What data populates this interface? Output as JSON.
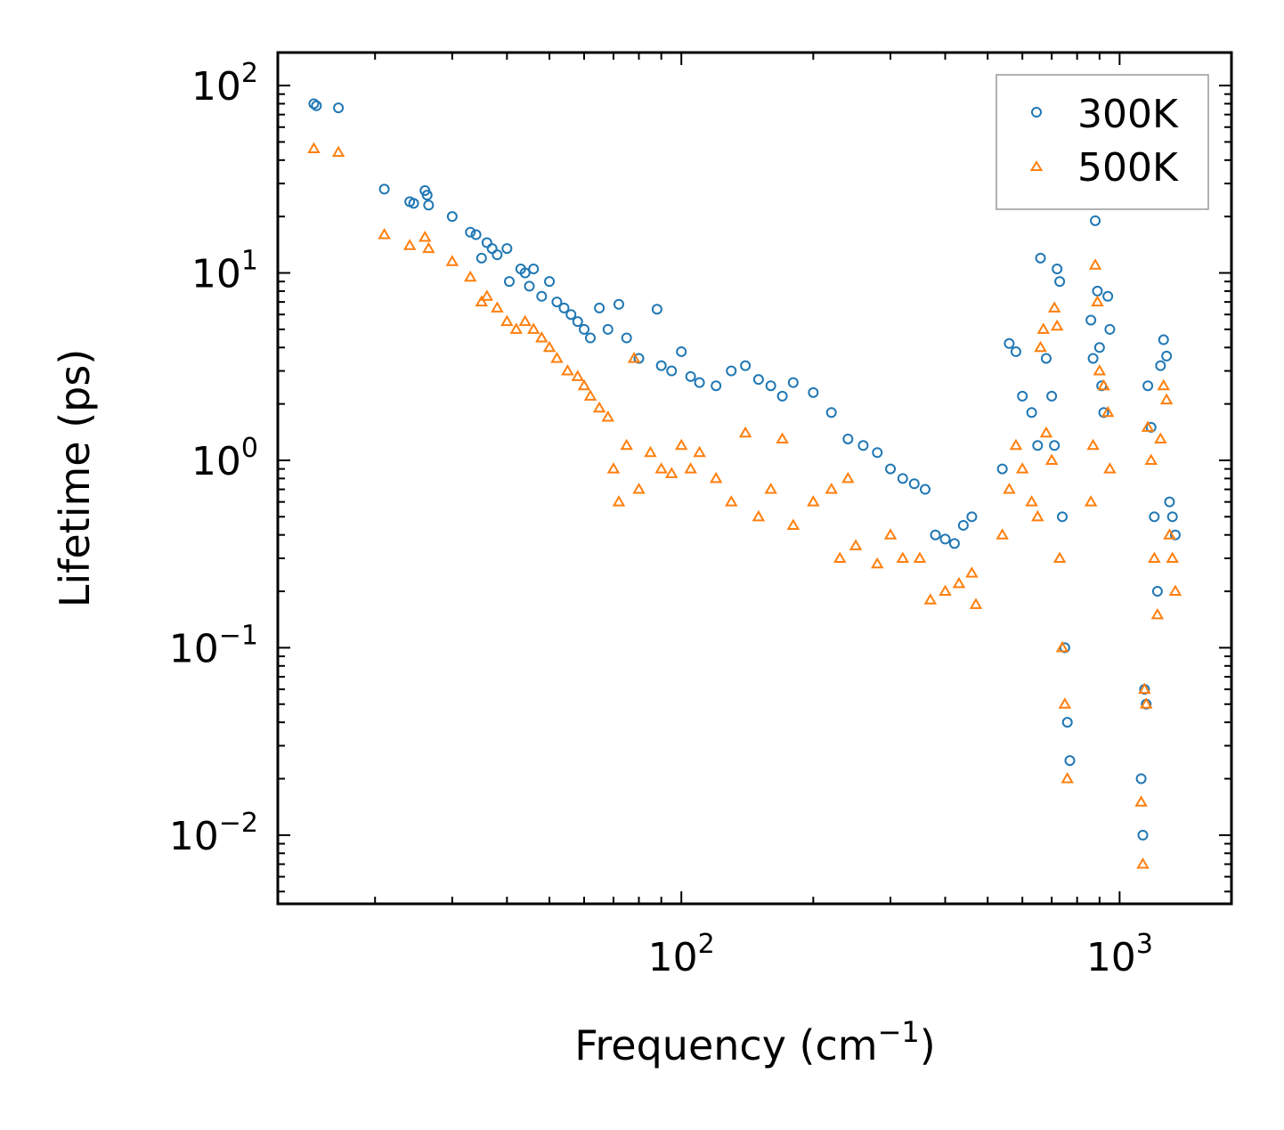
{
  "chart_data": {
    "type": "scatter",
    "title": "",
    "xlabel": "Frequency (cm",
    "xlabel_superscript": "−1",
    "xlabel_suffix": ")",
    "ylabel": "Lifetime (ps)",
    "xscale": "log",
    "yscale": "log",
    "xlim": [
      12,
      1800
    ],
    "ylim": [
      0.0043,
      150
    ],
    "x_ticks": [
      {
        "value": 100,
        "base": "10",
        "exp": "2"
      },
      {
        "value": 1000,
        "base": "10",
        "exp": "3"
      }
    ],
    "y_ticks": [
      {
        "value": 100,
        "base": "10",
        "exp": "2"
      },
      {
        "value": 10,
        "base": "10",
        "exp": "1"
      },
      {
        "value": 1,
        "base": "10",
        "exp": "0"
      },
      {
        "value": 0.1,
        "base": "10",
        "exp": "−1"
      },
      {
        "value": 0.01,
        "base": "10",
        "exp": "−2"
      }
    ],
    "tick_direction": "in",
    "ticks_on_all_sides": true,
    "legend": {
      "position": "top-right",
      "entries": [
        {
          "label": "300K",
          "marker": "circle",
          "color": "#1f77b4"
        },
        {
          "label": "500K",
          "marker": "triangle",
          "color": "#ff7f0e"
        }
      ]
    },
    "series": [
      {
        "name": "300K",
        "marker": "circle",
        "color": "#1f77b4",
        "points": [
          [
            14.5,
            80
          ],
          [
            14.7,
            78
          ],
          [
            16.5,
            76
          ],
          [
            21,
            28
          ],
          [
            24,
            24
          ],
          [
            24.5,
            23.5
          ],
          [
            26,
            27.5
          ],
          [
            26.3,
            26
          ],
          [
            26.5,
            23
          ],
          [
            30,
            20
          ],
          [
            33,
            16.5
          ],
          [
            34,
            16
          ],
          [
            35,
            12
          ],
          [
            36,
            14.5
          ],
          [
            37,
            13.5
          ],
          [
            38,
            12.5
          ],
          [
            40,
            13.5
          ],
          [
            40.5,
            9
          ],
          [
            43,
            10.5
          ],
          [
            44,
            10
          ],
          [
            45,
            8.5
          ],
          [
            46,
            10.5
          ],
          [
            48,
            7.5
          ],
          [
            50,
            9
          ],
          [
            52,
            7
          ],
          [
            54,
            6.5
          ],
          [
            56,
            6
          ],
          [
            58,
            5.5
          ],
          [
            60,
            5
          ],
          [
            62,
            4.5
          ],
          [
            65,
            6.5
          ],
          [
            68,
            5
          ],
          [
            72,
            6.8
          ],
          [
            75,
            4.5
          ],
          [
            80,
            3.5
          ],
          [
            88,
            6.4
          ],
          [
            90,
            3.2
          ],
          [
            95,
            3
          ],
          [
            100,
            3.8
          ],
          [
            105,
            2.8
          ],
          [
            110,
            2.6
          ],
          [
            120,
            2.5
          ],
          [
            130,
            3
          ],
          [
            140,
            3.2
          ],
          [
            150,
            2.7
          ],
          [
            160,
            2.5
          ],
          [
            170,
            2.2
          ],
          [
            180,
            2.6
          ],
          [
            200,
            2.3
          ],
          [
            220,
            1.8
          ],
          [
            240,
            1.3
          ],
          [
            260,
            1.2
          ],
          [
            280,
            1.1
          ],
          [
            300,
            0.9
          ],
          [
            320,
            0.8
          ],
          [
            340,
            0.75
          ],
          [
            360,
            0.7
          ],
          [
            380,
            0.4
          ],
          [
            400,
            0.38
          ],
          [
            420,
            0.36
          ],
          [
            440,
            0.45
          ],
          [
            460,
            0.5
          ],
          [
            540,
            0.9
          ],
          [
            560,
            4.2
          ],
          [
            580,
            3.8
          ],
          [
            600,
            2.2
          ],
          [
            630,
            1.8
          ],
          [
            650,
            1.2
          ],
          [
            660,
            12
          ],
          [
            680,
            3.5
          ],
          [
            700,
            2.2
          ],
          [
            710,
            1.2
          ],
          [
            720,
            10.5
          ],
          [
            730,
            9
          ],
          [
            740,
            0.5
          ],
          [
            750,
            0.1
          ],
          [
            760,
            0.04
          ],
          [
            770,
            0.025
          ],
          [
            860,
            5.6
          ],
          [
            870,
            3.5
          ],
          [
            880,
            19
          ],
          [
            890,
            8
          ],
          [
            900,
            4
          ],
          [
            910,
            2.5
          ],
          [
            920,
            1.8
          ],
          [
            940,
            7.5
          ],
          [
            950,
            5
          ],
          [
            1120,
            0.02
          ],
          [
            1130,
            0.01
          ],
          [
            1140,
            0.06
          ],
          [
            1150,
            0.05
          ],
          [
            1160,
            2.5
          ],
          [
            1180,
            1.5
          ],
          [
            1200,
            0.5
          ],
          [
            1220,
            0.2
          ],
          [
            1240,
            3.2
          ],
          [
            1260,
            4.4
          ],
          [
            1280,
            3.6
          ],
          [
            1300,
            0.6
          ],
          [
            1320,
            0.5
          ],
          [
            1340,
            0.4
          ]
        ]
      },
      {
        "name": "500K",
        "marker": "triangle",
        "color": "#ff7f0e",
        "points": [
          [
            14.5,
            46
          ],
          [
            16.5,
            44
          ],
          [
            21,
            16
          ],
          [
            24,
            14
          ],
          [
            26,
            15.5
          ],
          [
            26.5,
            13.5
          ],
          [
            30,
            11.5
          ],
          [
            33,
            9.5
          ],
          [
            35,
            7
          ],
          [
            36,
            7.5
          ],
          [
            38,
            6.5
          ],
          [
            40,
            5.5
          ],
          [
            42,
            5
          ],
          [
            44,
            5.5
          ],
          [
            46,
            5
          ],
          [
            48,
            4.5
          ],
          [
            50,
            4
          ],
          [
            52,
            3.5
          ],
          [
            55,
            3
          ],
          [
            58,
            2.8
          ],
          [
            60,
            2.5
          ],
          [
            62,
            2.2
          ],
          [
            65,
            1.9
          ],
          [
            68,
            1.7
          ],
          [
            70,
            0.9
          ],
          [
            72,
            0.6
          ],
          [
            75,
            1.2
          ],
          [
            78,
            3.5
          ],
          [
            80,
            0.7
          ],
          [
            85,
            1.1
          ],
          [
            90,
            0.9
          ],
          [
            95,
            0.85
          ],
          [
            100,
            1.2
          ],
          [
            105,
            0.9
          ],
          [
            110,
            1.1
          ],
          [
            120,
            0.8
          ],
          [
            130,
            0.6
          ],
          [
            140,
            1.4
          ],
          [
            150,
            0.5
          ],
          [
            160,
            0.7
          ],
          [
            170,
            1.3
          ],
          [
            180,
            0.45
          ],
          [
            200,
            0.6
          ],
          [
            220,
            0.7
          ],
          [
            230,
            0.3
          ],
          [
            240,
            0.8
          ],
          [
            250,
            0.35
          ],
          [
            280,
            0.28
          ],
          [
            300,
            0.4
          ],
          [
            320,
            0.3
          ],
          [
            350,
            0.3
          ],
          [
            370,
            0.18
          ],
          [
            400,
            0.2
          ],
          [
            430,
            0.22
          ],
          [
            460,
            0.25
          ],
          [
            470,
            0.17
          ],
          [
            540,
            0.4
          ],
          [
            560,
            0.7
          ],
          [
            580,
            1.2
          ],
          [
            600,
            0.9
          ],
          [
            630,
            0.6
          ],
          [
            650,
            0.5
          ],
          [
            660,
            4
          ],
          [
            670,
            5
          ],
          [
            680,
            1.4
          ],
          [
            700,
            1
          ],
          [
            710,
            6.5
          ],
          [
            720,
            5.2
          ],
          [
            730,
            0.3
          ],
          [
            740,
            0.1
          ],
          [
            750,
            0.05
          ],
          [
            760,
            0.02
          ],
          [
            860,
            0.6
          ],
          [
            870,
            1.2
          ],
          [
            880,
            11
          ],
          [
            890,
            7
          ],
          [
            900,
            3
          ],
          [
            920,
            2.5
          ],
          [
            940,
            1.8
          ],
          [
            950,
            0.9
          ],
          [
            1120,
            0.015
          ],
          [
            1130,
            0.007
          ],
          [
            1140,
            0.06
          ],
          [
            1150,
            0.05
          ],
          [
            1160,
            1.5
          ],
          [
            1180,
            1
          ],
          [
            1200,
            0.3
          ],
          [
            1220,
            0.15
          ],
          [
            1240,
            1.3
          ],
          [
            1260,
            2.5
          ],
          [
            1280,
            2.1
          ],
          [
            1300,
            0.4
          ],
          [
            1320,
            0.3
          ],
          [
            1340,
            0.2
          ]
        ]
      }
    ]
  }
}
